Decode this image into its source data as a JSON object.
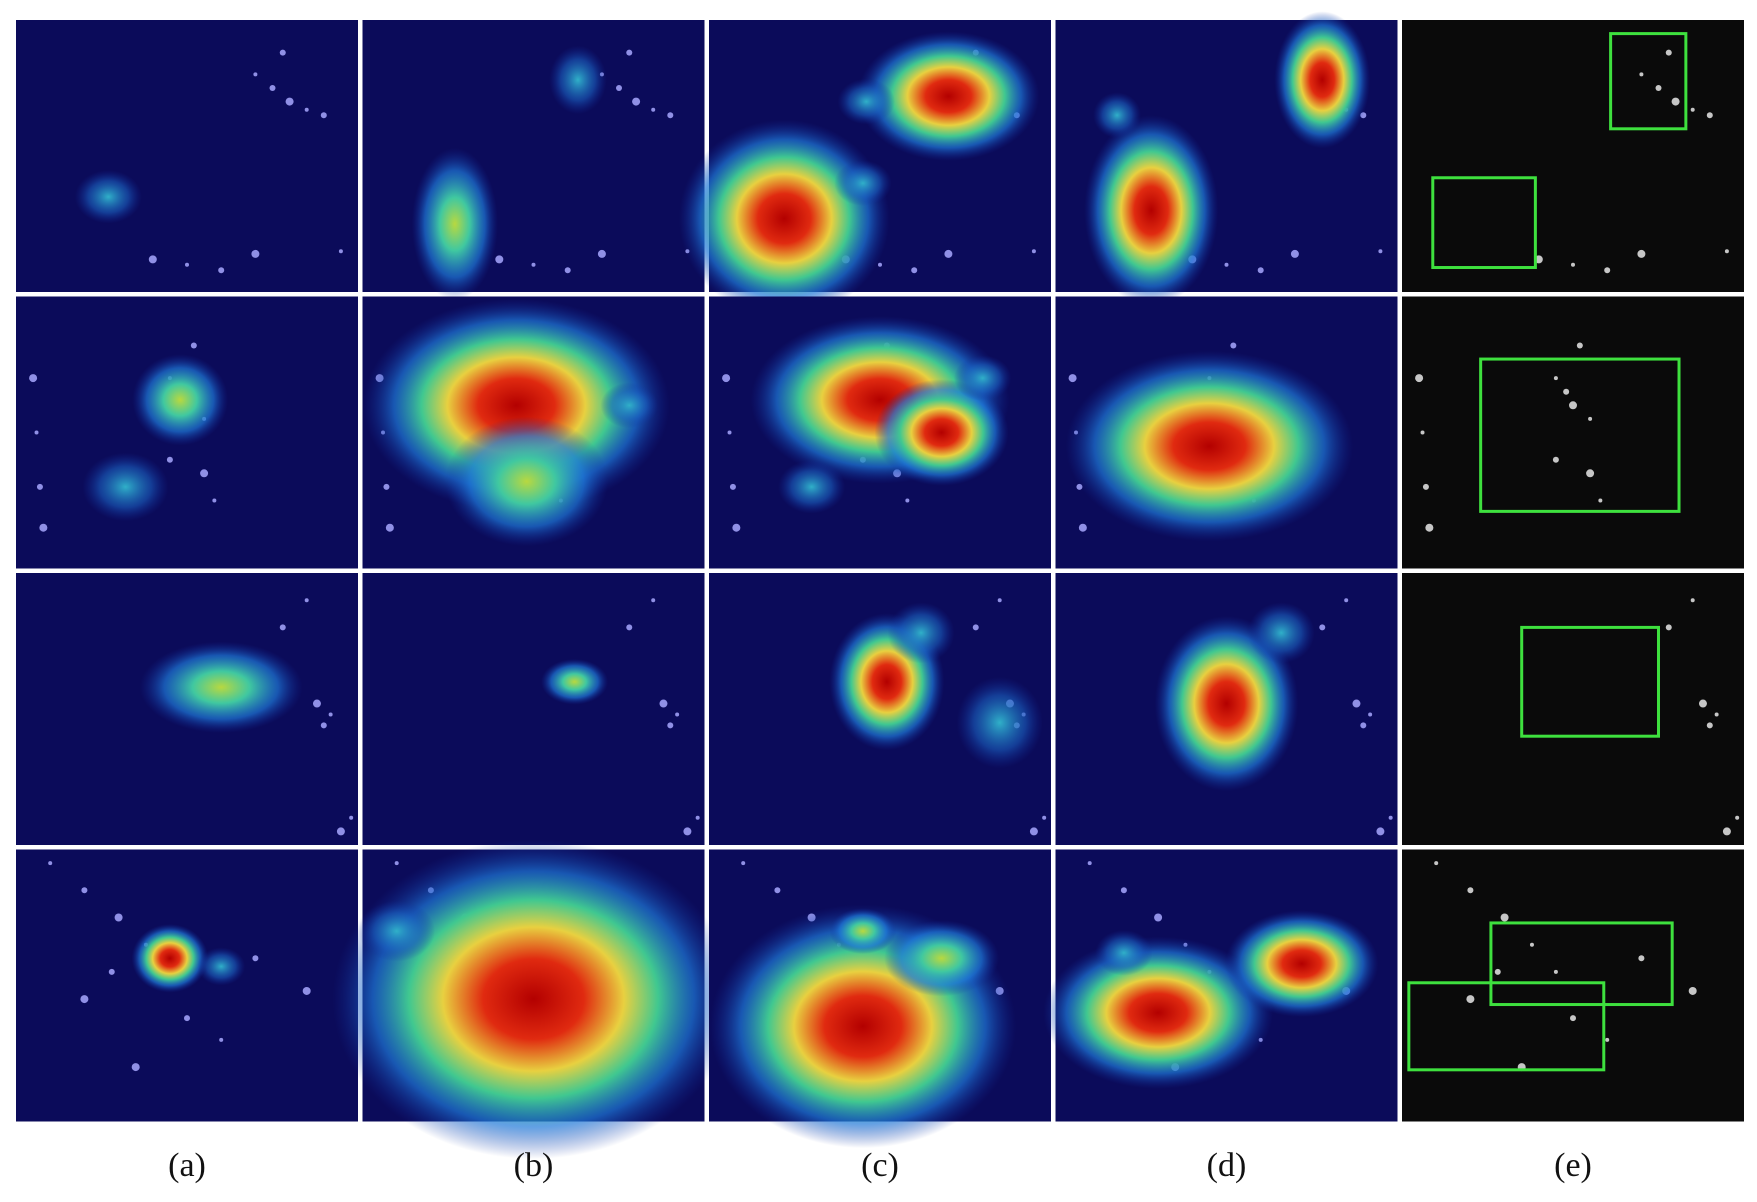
{
  "panel_labels": [
    "(a)",
    "(b)",
    "(c)",
    "(d)",
    "(e)"
  ]
}
